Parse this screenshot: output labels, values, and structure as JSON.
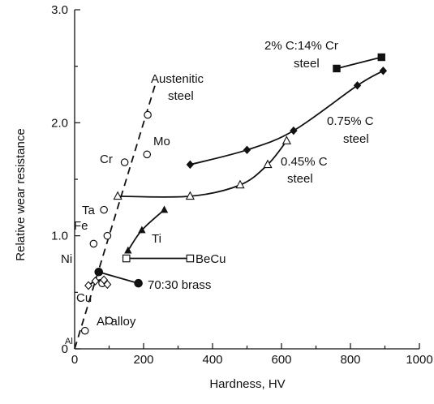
{
  "chart_data": {
    "type": "scatter",
    "xlabel": "Hardness, HV",
    "ylabel": "Relative wear resistance",
    "xlim": [
      0,
      1000
    ],
    "ylim": [
      0,
      3.0
    ],
    "x_ticks": [
      0,
      200,
      400,
      600,
      800,
      1000
    ],
    "y_ticks": [
      0,
      1.0,
      2.0,
      3.0
    ],
    "x_tick_labels": [
      "0",
      "200",
      "400",
      "600",
      "800",
      "1000"
    ],
    "y_tick_labels": [
      "0",
      "1.0",
      "2.0",
      "3.0"
    ],
    "pure_metals": {
      "marker": "open-circle",
      "points": [
        {
          "label": "Al",
          "x": 30,
          "y": 0.16
        },
        {
          "label": "Cu",
          "x": 80,
          "y": 0.58
        },
        {
          "label": "Ni",
          "x": 55,
          "y": 0.93
        },
        {
          "label": "Fe",
          "x": 95,
          "y": 1.0
        },
        {
          "label": "Ta",
          "x": 85,
          "y": 1.23
        },
        {
          "label": "Cr",
          "x": 145,
          "y": 1.65
        },
        {
          "label": "Mo",
          "x": 210,
          "y": 1.72
        },
        {
          "label": "",
          "x": 212,
          "y": 2.07
        }
      ]
    },
    "austenitic_trend": {
      "label_line1": "Austenitic",
      "label_line2": "steel",
      "x": [
        0,
        235
      ],
      "y": [
        0,
        2.35
      ]
    },
    "series": [
      {
        "marker": "open-diamond",
        "x": [
          40,
          60,
          85,
          95
        ],
        "y": [
          0.56,
          0.6,
          0.61,
          0.57
        ]
      },
      {
        "name": "70:30 brass",
        "marker": "filled-circle",
        "x": [
          70,
          185
        ],
        "y": [
          0.68,
          0.58
        ]
      },
      {
        "name": "Al alloy",
        "marker": "open-circle",
        "x": [
          100
        ],
        "y": [
          0.25
        ]
      },
      {
        "name": "BeCu",
        "marker": "open-square",
        "x": [
          150,
          335
        ],
        "y": [
          0.8,
          0.8
        ]
      },
      {
        "name": "Ti",
        "marker": "filled-triangle",
        "x": [
          155,
          195,
          260
        ],
        "y": [
          0.87,
          1.05,
          1.23
        ]
      },
      {
        "name": "0.45% C steel",
        "marker": "open-triangle",
        "x": [
          125,
          335,
          480,
          560,
          615
        ],
        "y": [
          1.35,
          1.35,
          1.45,
          1.63,
          1.84
        ]
      },
      {
        "name": "0.75% C steel",
        "marker": "filled-diamond",
        "x": [
          335,
          500,
          635,
          820,
          895
        ],
        "y": [
          1.63,
          1.76,
          1.93,
          2.33,
          2.46
        ]
      },
      {
        "name": "2% C:14% Cr steel",
        "marker": "filled-square",
        "x": [
          760,
          890
        ],
        "y": [
          2.48,
          2.58
        ]
      }
    ],
    "annotations": {
      "austenitic_1": "Austenitic",
      "austenitic_2": "steel",
      "mo": "Mo",
      "cr": "Cr",
      "ta": "Ta",
      "fe": "Fe",
      "ni": "Ni",
      "cu": "Cu",
      "al": "Al",
      "al_alloy": "Al alloy",
      "brass": "70:30 brass",
      "becu": "BeCu",
      "ti": "Ti",
      "c045_1": "0.45% C",
      "c045_2": "steel",
      "c075_1": "0.75% C",
      "c075_2": "steel",
      "crsteel_1": "2% C:14% Cr",
      "crsteel_2": "steel"
    }
  }
}
